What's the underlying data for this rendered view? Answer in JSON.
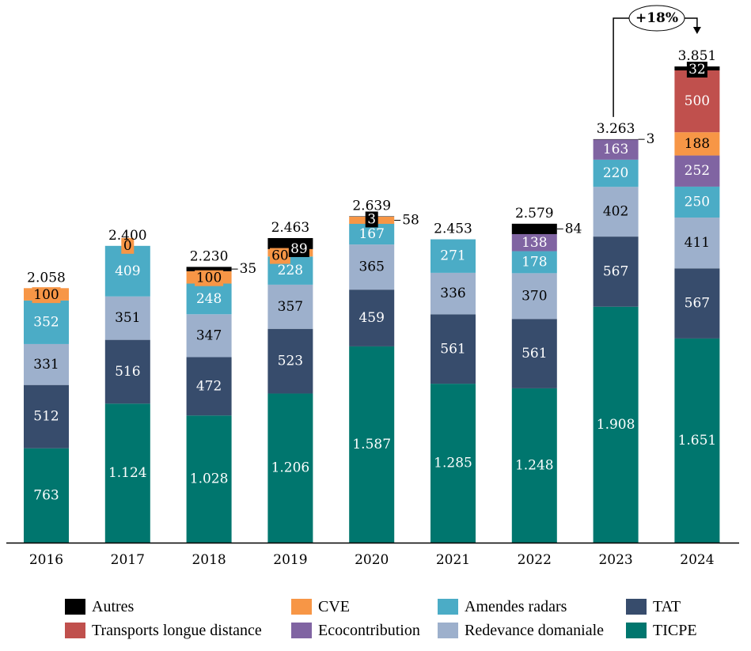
{
  "chart_data": {
    "type": "bar",
    "stacked": true,
    "title": "",
    "xlabel": "",
    "ylabel": "",
    "categories": [
      "2016",
      "2017",
      "2018",
      "2019",
      "2020",
      "2021",
      "2022",
      "2023",
      "2024"
    ],
    "totals": [
      2058,
      2400,
      2230,
      2463,
      2639,
      2453,
      2579,
      3263,
      3851
    ],
    "total_labels": [
      "2.058",
      "2.400",
      "2.230",
      "2.463",
      "2.639",
      "2.453",
      "2.579",
      "3.263",
      "3.851"
    ],
    "series": [
      {
        "name": "TICPE",
        "color": "#00766E",
        "label_color": "#ffffff",
        "values": [
          763,
          1124,
          1028,
          1206,
          1587,
          1285,
          1248,
          1908,
          1651
        ],
        "labels": [
          "763",
          "1.124",
          "1.028",
          "1.206",
          "1.587",
          "1.285",
          "1.248",
          "1.908",
          "1.651"
        ]
      },
      {
        "name": "TAT",
        "color": "#374C6C",
        "label_color": "#ffffff",
        "values": [
          512,
          516,
          472,
          523,
          459,
          561,
          561,
          567,
          567
        ],
        "labels": [
          "512",
          "516",
          "472",
          "523",
          "459",
          "561",
          "561",
          "567",
          "567"
        ]
      },
      {
        "name": "Redevance domaniale",
        "color": "#9DB0CC",
        "label_color": "#000000",
        "values": [
          331,
          351,
          347,
          357,
          365,
          336,
          370,
          402,
          411
        ],
        "labels": [
          "331",
          "351",
          "347",
          "357",
          "365",
          "336",
          "370",
          "402",
          "411"
        ]
      },
      {
        "name": "Amendes radars",
        "color": "#4BACC6",
        "label_color": "#ffffff",
        "values": [
          352,
          409,
          248,
          228,
          167,
          271,
          178,
          220,
          250
        ],
        "labels": [
          "352",
          "409",
          "248",
          "228",
          "167",
          "271",
          "178",
          "220",
          "250"
        ]
      },
      {
        "name": "Ecocontribution",
        "color": "#8064A2",
        "label_color": "#ffffff",
        "values": [
          0,
          0,
          0,
          0,
          0,
          0,
          138,
          163,
          252
        ],
        "labels": [
          "",
          "",
          "",
          "",
          "",
          "",
          "138",
          "163",
          "252"
        ]
      },
      {
        "name": "CVE",
        "color": "#F79646",
        "label_color": "#000000",
        "values": [
          100,
          0,
          100,
          60,
          58,
          0,
          0,
          0,
          188
        ],
        "labels": [
          "100",
          "0",
          "100",
          "60",
          "58",
          "",
          "",
          "",
          "188"
        ]
      },
      {
        "name": "Transports longue distance",
        "color": "#C0504D",
        "label_color": "#ffffff",
        "values": [
          0,
          0,
          0,
          0,
          0,
          0,
          0,
          0,
          500
        ],
        "labels": [
          "",
          "",
          "",
          "",
          "",
          "",
          "",
          "",
          "500"
        ]
      },
      {
        "name": "Autres",
        "color": "#000000",
        "label_color": "#ffffff",
        "values": [
          0,
          0,
          35,
          89,
          3,
          0,
          84,
          3,
          32
        ],
        "labels": [
          "",
          "",
          "35",
          "89",
          "3",
          "",
          "84",
          "3",
          "32"
        ]
      }
    ],
    "annotation": {
      "text": "+18%",
      "from": "2023",
      "to": "2024"
    },
    "legend": {
      "placement": "bottom",
      "items": [
        {
          "name": "Autres",
          "color": "#000000"
        },
        {
          "name": "CVE",
          "color": "#F79646"
        },
        {
          "name": "Amendes radars",
          "color": "#4BACC6"
        },
        {
          "name": "TAT",
          "color": "#374C6C"
        },
        {
          "name": "Transports longue distance",
          "color": "#C0504D"
        },
        {
          "name": "Ecocontribution",
          "color": "#8064A2"
        },
        {
          "name": "Redevance domaniale",
          "color": "#9DB0CC"
        },
        {
          "name": "TICPE",
          "color": "#00766E"
        }
      ]
    },
    "grid": false
  }
}
